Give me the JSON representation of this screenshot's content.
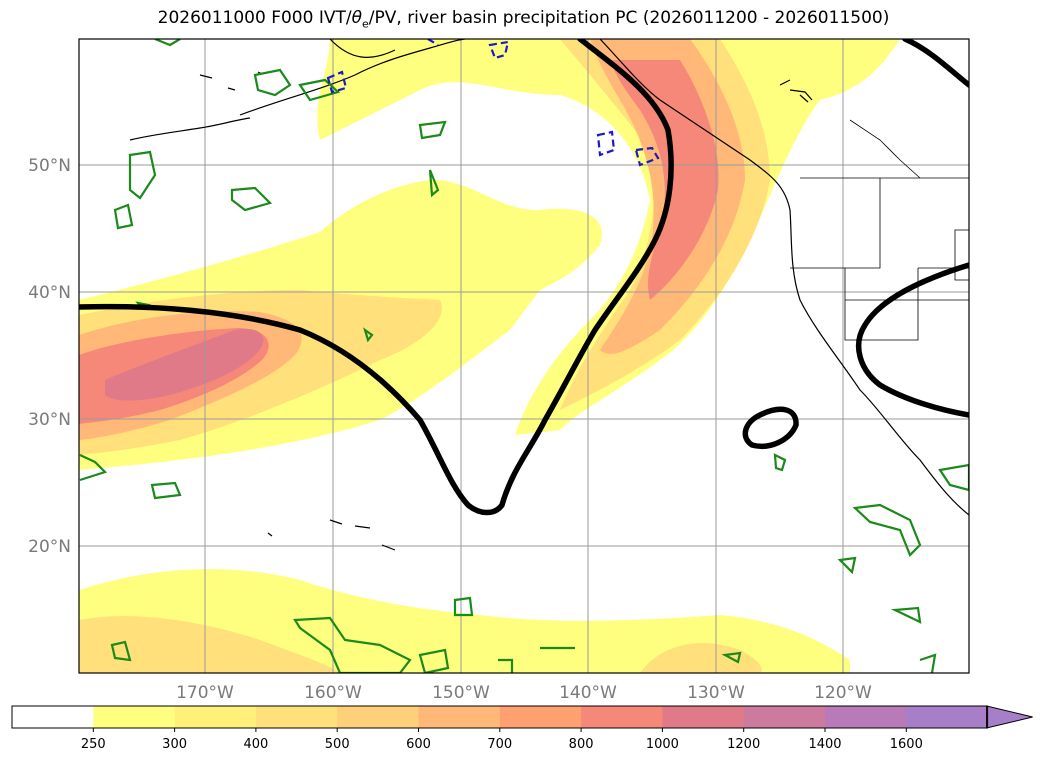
{
  "title": {
    "prefix": "2026011000 F000 IVT/",
    "theta": "θ",
    "theta_sub": "e",
    "suffix": "/PV, river basin precipitation PC (2026011200 - 2026011500)"
  },
  "map": {
    "lat_labels": [
      "50°N",
      "40°N",
      "30°N",
      "20°N"
    ],
    "lon_labels": [
      "170°W",
      "160°W",
      "150°W",
      "140°W",
      "130°W",
      "120°W"
    ]
  },
  "colorbar": {
    "ticks": [
      "250",
      "300",
      "400",
      "500",
      "600",
      "700",
      "800",
      "1000",
      "1200",
      "1400",
      "1600"
    ],
    "colors": [
      "#ffffff",
      "#ffff7f",
      "#fff07a",
      "#ffe07a",
      "#ffd07a",
      "#ffb878",
      "#ffa070",
      "#f58878",
      "#e07a88",
      "#cc7a9e",
      "#b87ab8",
      "#a67fc8"
    ]
  }
}
